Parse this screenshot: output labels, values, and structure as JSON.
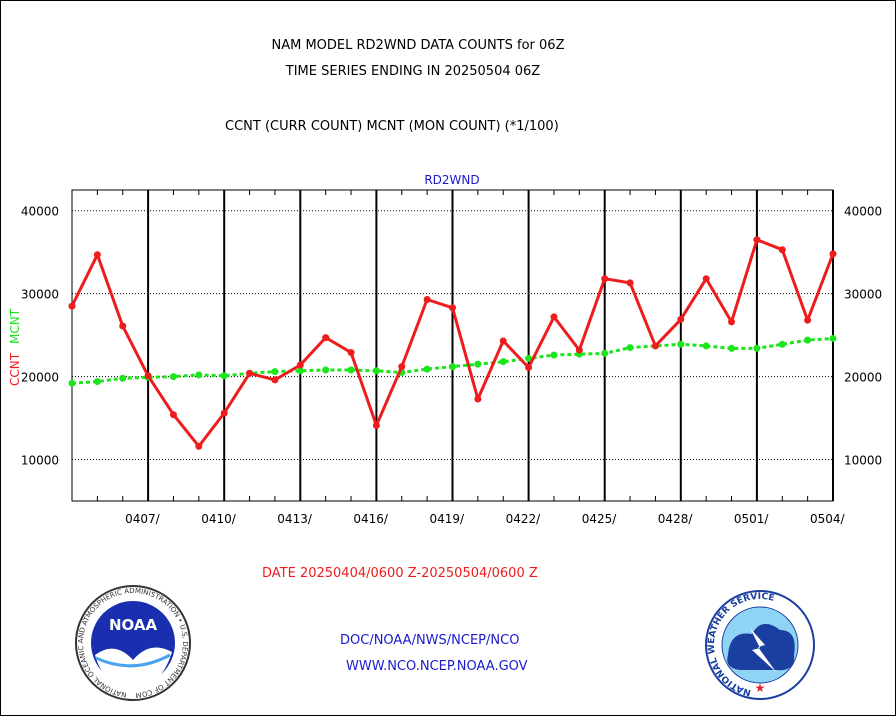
{
  "header": {
    "title_line1": "NAM MODEL RD2WND DATA COUNTS for 06Z",
    "title_line2": "TIME SERIES ENDING IN 20250504 06Z",
    "subtitle": "CCNT (CURR COUNT) MCNT (MON COUNT) (*1/100)"
  },
  "footer": {
    "date_range": "DATE 20250404/0600 Z-20250504/0600 Z",
    "org_line1": "DOC/NOAA/NWS/NCEP/NCO",
    "org_line2": "WWW.NCO.NCEP.NOAA.GOV",
    "noaa_logo_text": "NOAA",
    "noaa_ring_text": "NATIONAL OCEANIC AND ATMOSPHERIC ADMINISTRATION • U.S. DEPARTMENT OF COMMERCE",
    "nws_ring_text": "NATIONAL WEATHER SERVICE"
  },
  "colors": {
    "ccnt": "#ee1c1c",
    "mcnt": "#1de51d",
    "title_blue": "#1a1acc",
    "date_red": "#ee1c1c"
  },
  "chart_data": {
    "type": "line",
    "title": "RD2WND",
    "ylabel_ccnt": "CCNT",
    "ylabel_mcnt": "MCNT",
    "ylim": [
      5000,
      42500
    ],
    "y_ticks": [
      10000,
      20000,
      30000,
      40000
    ],
    "y_tick_labels": [
      "10000",
      "20000",
      "30000",
      "40000"
    ],
    "x_range_days": [
      0,
      30
    ],
    "x_ticks_day": [
      3,
      6,
      9,
      12,
      15,
      18,
      21,
      24,
      27,
      30
    ],
    "x_tick_labels": [
      "0407/",
      "0410/",
      "0413/",
      "0416/",
      "0419/",
      "0422/",
      "0425/",
      "0428/",
      "0501/",
      "0504/"
    ],
    "grid": true,
    "series": [
      {
        "name": "CCNT",
        "x_day": [
          0,
          1,
          2,
          3,
          4,
          5,
          6,
          7,
          8,
          9,
          10,
          11,
          12,
          13,
          14,
          15,
          16,
          17,
          18,
          19,
          20,
          21,
          22,
          23,
          24,
          25,
          26,
          27,
          28,
          29,
          30
        ],
        "values": [
          28500,
          34700,
          26100,
          20100,
          15400,
          11600,
          15600,
          20400,
          19600,
          21400,
          24700,
          22900,
          14100,
          21200,
          29300,
          28300,
          17300,
          24300,
          21100,
          27200,
          23200,
          31800,
          31300,
          23700,
          26900,
          31800,
          26600,
          36500,
          35300,
          26800,
          34800
        ]
      },
      {
        "name": "MCNT",
        "x_day": [
          0,
          1,
          2,
          3,
          4,
          5,
          6,
          7,
          8,
          9,
          10,
          11,
          12,
          13,
          14,
          15,
          16,
          17,
          18,
          19,
          20,
          21,
          22,
          23,
          24,
          25,
          26,
          27,
          28,
          29,
          30
        ],
        "values": [
          19200,
          19400,
          19800,
          19900,
          20000,
          20200,
          20100,
          20400,
          20600,
          20700,
          20800,
          20800,
          20700,
          20500,
          20900,
          21200,
          21500,
          21800,
          22200,
          22600,
          22700,
          22800,
          23500,
          23700,
          23900,
          23700,
          23400,
          23400,
          23900,
          24400,
          24600
        ]
      }
    ]
  }
}
